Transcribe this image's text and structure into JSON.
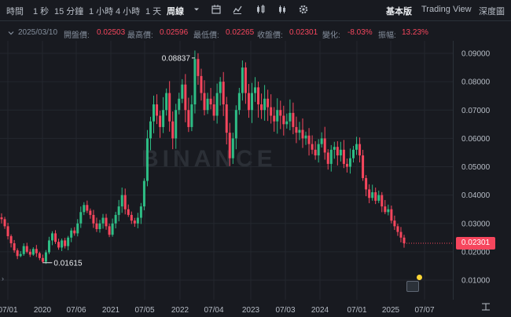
{
  "toolbar": {
    "intervals": [
      "時間",
      "1 秒",
      "15 分鐘",
      "1 小時",
      "4 小時",
      "1 天",
      "周線"
    ],
    "active_interval": "周線",
    "views": [
      "基本版",
      "Trading View",
      "深度圖"
    ],
    "active_view": "基本版"
  },
  "ohlc": {
    "date": "2025/03/10",
    "open_label": "開盤價:",
    "open": "0.02503",
    "high_label": "最高價:",
    "high": "0.02596",
    "low_label": "最低價:",
    "low": "0.02265",
    "close_label": "收盤價:",
    "close": "0.02301",
    "change_label": "變化:",
    "change": "-8.03%",
    "amplitude_label": "振幅:",
    "amplitude": "13.23%"
  },
  "watermark": "BINANCE",
  "current_price": "0.02301",
  "colors": {
    "up": "#2ebd85",
    "down": "#f6465d",
    "bg": "#181a20",
    "grid": "#23272e",
    "text": "#b7bdc6"
  },
  "icons": [
    "chevron-down-icon",
    "candle-type-icon",
    "indicator-icon",
    "candles-icon",
    "settings-icon",
    "collapse-icon"
  ],
  "chart_data": {
    "type": "candlestick",
    "interval": "weekly",
    "y_ticks": [
      "0.09000",
      "0.08000",
      "0.07000",
      "0.06000",
      "0.05000",
      "0.04000",
      "0.03000",
      "0.02000",
      "0.01000"
    ],
    "y_tick_values": [
      0.09,
      0.08,
      0.07,
      0.06,
      0.05,
      0.04,
      0.03,
      0.02,
      0.01
    ],
    "x_ticks": [
      "07/01",
      "2020",
      "07/06",
      "2021",
      "07/05",
      "2022",
      "07/04",
      "2023",
      "07/03",
      "2024",
      "07/01",
      "2025",
      "07/07"
    ],
    "ylim": [
      0.0045,
      0.0975
    ],
    "annotations": [
      {
        "text": "0.08837",
        "value": 0.08837
      },
      {
        "text": "0.01615",
        "value": 0.01615
      }
    ],
    "close_path": [
      0.0315,
      0.029,
      0.0255,
      0.023,
      0.0205,
      0.0185,
      0.0192,
      0.022,
      0.02,
      0.019,
      0.021,
      0.0195,
      0.0178,
      0.0165,
      0.0198,
      0.024,
      0.0265,
      0.0235,
      0.0215,
      0.024,
      0.022,
      0.025,
      0.0275,
      0.0265,
      0.03,
      0.034,
      0.0365,
      0.0345,
      0.033,
      0.03,
      0.028,
      0.03,
      0.032,
      0.029,
      0.026,
      0.03,
      0.033,
      0.036,
      0.04,
      0.035,
      0.033,
      0.031,
      0.03,
      0.032,
      0.036,
      0.045,
      0.06,
      0.066,
      0.072,
      0.068,
      0.064,
      0.07,
      0.076,
      0.066,
      0.06,
      0.07,
      0.074,
      0.079,
      0.07,
      0.064,
      0.072,
      0.088,
      0.082,
      0.076,
      0.07,
      0.074,
      0.072,
      0.068,
      0.076,
      0.08,
      0.072,
      0.062,
      0.053,
      0.06,
      0.07,
      0.076,
      0.085,
      0.076,
      0.07,
      0.076,
      0.078,
      0.072,
      0.07,
      0.074,
      0.071,
      0.068,
      0.066,
      0.07,
      0.068,
      0.065,
      0.066,
      0.069,
      0.064,
      0.062,
      0.063,
      0.06,
      0.061,
      0.058,
      0.056,
      0.054,
      0.058,
      0.06,
      0.055,
      0.051,
      0.056,
      0.057,
      0.054,
      0.056,
      0.051,
      0.05,
      0.053,
      0.056,
      0.058,
      0.054,
      0.046,
      0.042,
      0.039,
      0.041,
      0.038,
      0.04,
      0.036,
      0.034,
      0.035,
      0.031,
      0.029,
      0.027,
      0.025,
      0.023
    ]
  }
}
